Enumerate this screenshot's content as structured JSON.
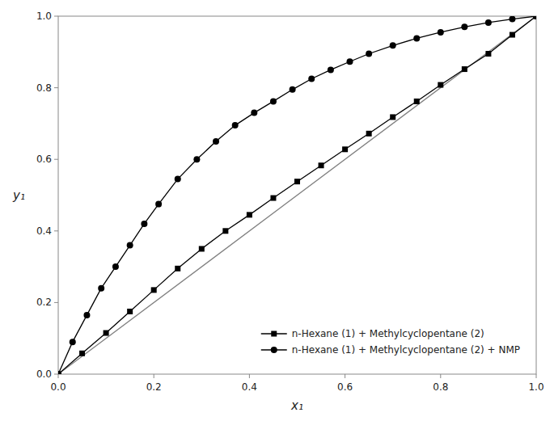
{
  "chart_data": {
    "type": "line",
    "x_label": "x₁",
    "y_label": "y₁",
    "xlim": [
      0.0,
      1.0
    ],
    "ylim": [
      0.0,
      1.0
    ],
    "xticks": [
      {
        "value": 0.0,
        "label": "0.0"
      },
      0.2,
      0.4,
      0.6,
      0.8,
      {
        "value": 1.0,
        "label": "1.0"
      }
    ],
    "yticks": [
      {
        "value": 0.0,
        "label": "0.0"
      },
      0.2,
      0.4,
      0.6,
      0.8,
      {
        "value": 1.0,
        "label": "1.0"
      }
    ],
    "grid": false,
    "legend": "lower right",
    "series": [
      {
        "color": "#808080",
        "marker": "none",
        "line_style": "solid",
        "x": [
          0.0,
          1.0
        ],
        "values": [
          0.0,
          1.0
        ]
      },
      {
        "name": "n-Hexane (1) + Methylcyclopentane (2)",
        "color": "#000000",
        "marker": "square",
        "line_style": "solid",
        "x": [
          0.0,
          0.05,
          0.1,
          0.15,
          0.2,
          0.25,
          0.3,
          0.35,
          0.4,
          0.45,
          0.5,
          0.55,
          0.6,
          0.65,
          0.7,
          0.75,
          0.8,
          0.85,
          0.9,
          0.95,
          1.0
        ],
        "values": [
          0.0,
          0.058,
          0.115,
          0.175,
          0.235,
          0.295,
          0.35,
          0.4,
          0.445,
          0.492,
          0.538,
          0.583,
          0.628,
          0.672,
          0.718,
          0.762,
          0.808,
          0.852,
          0.895,
          0.948,
          1.0
        ]
      },
      {
        "name": "n-Hexane (1) + Methylcyclopentane (2) + NMP",
        "color": "#000000",
        "marker": "circle",
        "line_style": "solid",
        "x": [
          0.0,
          0.03,
          0.06,
          0.09,
          0.12,
          0.15,
          0.18,
          0.21,
          0.25,
          0.29,
          0.33,
          0.37,
          0.41,
          0.45,
          0.49,
          0.53,
          0.57,
          0.61,
          0.65,
          0.7,
          0.75,
          0.8,
          0.85,
          0.9,
          0.95,
          1.0
        ],
        "values": [
          0.0,
          0.09,
          0.165,
          0.24,
          0.3,
          0.36,
          0.42,
          0.475,
          0.545,
          0.6,
          0.65,
          0.695,
          0.73,
          0.762,
          0.795,
          0.825,
          0.85,
          0.873,
          0.895,
          0.918,
          0.938,
          0.955,
          0.97,
          0.982,
          0.992,
          1.0
        ]
      }
    ]
  }
}
